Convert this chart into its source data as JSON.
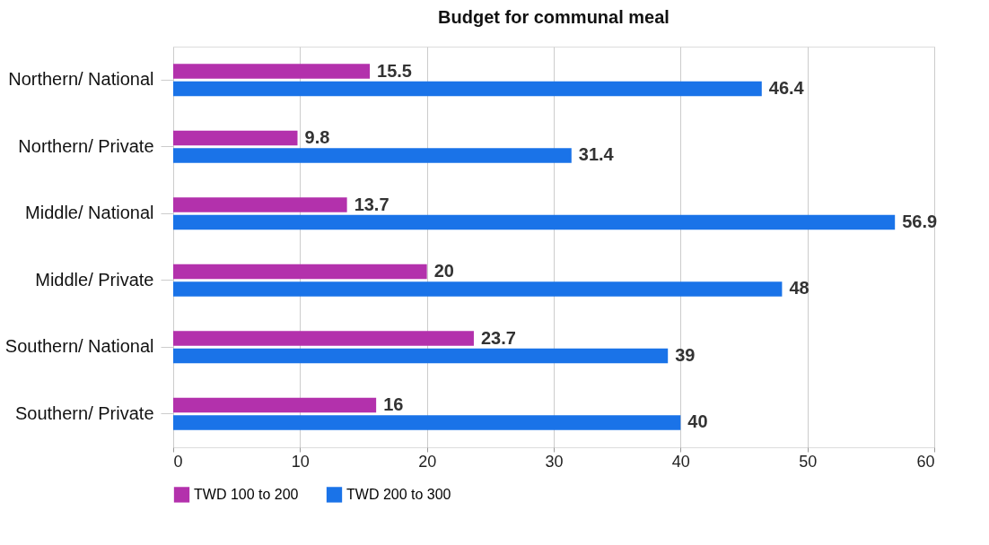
{
  "chart_data": {
    "type": "bar",
    "orientation": "horizontal",
    "title": "Budget for communal meal",
    "categories": [
      "Northern/ National",
      "Northern/ Private",
      "Middle/ National",
      "Middle/ Private",
      "Southern/ National",
      "Southern/ Private"
    ],
    "series": [
      {
        "name": "TWD 100 to 200",
        "color": "#b331ac",
        "values": [
          15.5,
          9.8,
          13.7,
          20,
          23.7,
          16
        ]
      },
      {
        "name": "TWD 200 to 300",
        "color": "#1a73e8",
        "values": [
          46.4,
          31.4,
          56.9,
          48,
          39,
          40
        ]
      }
    ],
    "xlim": [
      0,
      60
    ],
    "xticks": [
      0,
      10,
      20,
      30,
      40,
      50,
      60
    ],
    "grid": "x",
    "legend": "bottom",
    "data_labels": true
  }
}
